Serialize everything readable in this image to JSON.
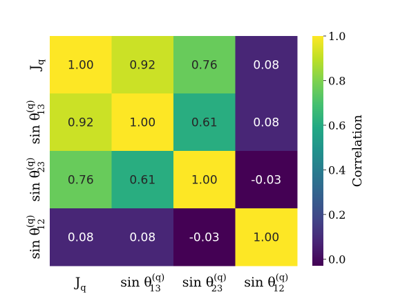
{
  "chart_data": {
    "type": "heatmap",
    "title": "",
    "row_labels": [
      {
        "base": "J",
        "sub": "q",
        "sup": ""
      },
      {
        "base": "sin θ",
        "sub": "13",
        "sup": "(q)"
      },
      {
        "base": "sin θ",
        "sub": "23",
        "sup": "(q)"
      },
      {
        "base": "sin θ",
        "sub": "12",
        "sup": "(q)"
      }
    ],
    "col_labels": [
      {
        "base": "J",
        "sub": "q",
        "sup": ""
      },
      {
        "base": "sin θ",
        "sub": "13",
        "sup": "(q)"
      },
      {
        "base": "sin θ",
        "sub": "23",
        "sup": "(q)"
      },
      {
        "base": "sin θ",
        "sub": "12",
        "sup": "(q)"
      }
    ],
    "values": [
      [
        1.0,
        0.92,
        0.76,
        0.08
      ],
      [
        0.92,
        1.0,
        0.61,
        0.08
      ],
      [
        0.76,
        0.61,
        1.0,
        -0.03
      ],
      [
        0.08,
        0.08,
        -0.03,
        1.0
      ]
    ],
    "value_labels": [
      [
        "1.00",
        "0.92",
        "0.76",
        "0.08"
      ],
      [
        "0.92",
        "1.00",
        "0.61",
        "0.08"
      ],
      [
        "0.76",
        "0.61",
        "1.00",
        "-0.03"
      ],
      [
        "0.08",
        "0.08",
        "-0.03",
        "1.00"
      ]
    ],
    "colormap": "viridis",
    "vmin": -0.03,
    "vmax": 1.0,
    "colorbar": {
      "label": "Correlation",
      "ticks": [
        0.0,
        0.2,
        0.4,
        0.6,
        0.8,
        1.0
      ],
      "tick_labels": [
        "0.0",
        "0.2",
        "0.4",
        "0.6",
        "0.8",
        "1.0"
      ]
    }
  }
}
